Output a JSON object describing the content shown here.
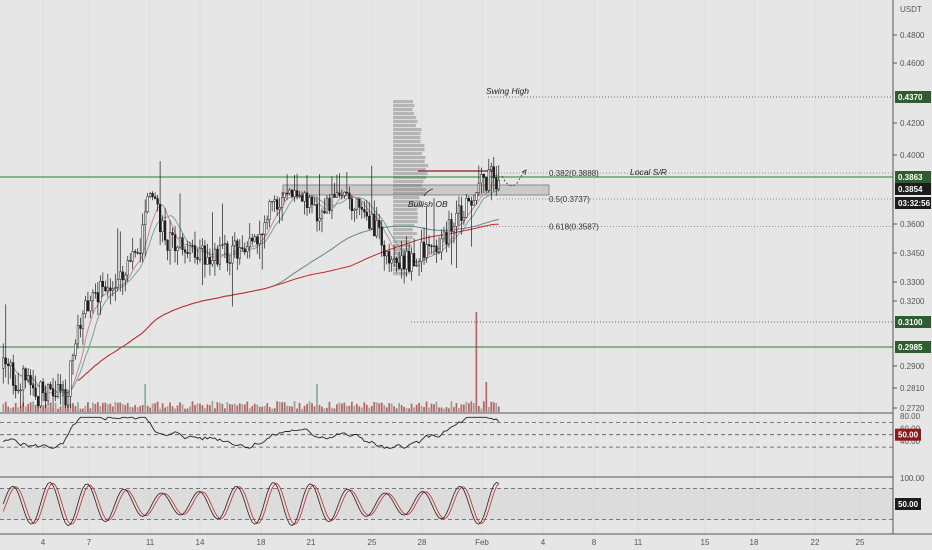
{
  "chart_data": {
    "type": "candlestick",
    "currency_label": "USDT",
    "price_axis_ticks": [
      "0.4800",
      "0.4600",
      "0.4200",
      "0.4000",
      "0.3600",
      "0.3450",
      "0.3300",
      "0.3200",
      "0.2900",
      "0.2810",
      "0.2720"
    ],
    "price_badges": [
      {
        "text": "0.4370",
        "price": 0.437,
        "color": "#2e5e2e"
      },
      {
        "text": "0.3863",
        "price": 0.3863,
        "color": "#2e5e2e"
      },
      {
        "text": "0.3854",
        "price": 0.3854,
        "color": "#1c1c1c"
      },
      {
        "text": "03:32:56",
        "price": 0.379,
        "color": "#1c1c1c"
      },
      {
        "text": "0.3100",
        "price": 0.31,
        "color": "#2e5e2e"
      },
      {
        "text": "0.2985",
        "price": 0.2985,
        "color": "#2e5e2e"
      }
    ],
    "date_axis_ticks": [
      "4",
      "7",
      "11",
      "14",
      "18",
      "21",
      "25",
      "28",
      "Feb",
      "4",
      "8",
      "11",
      "15",
      "18",
      "22",
      "25"
    ],
    "levels": [
      {
        "price": 0.437,
        "style": "dotted",
        "label": "Swing High"
      },
      {
        "price": 0.3863,
        "style": "solid",
        "color": "#2e7d32",
        "label": "Local S/R"
      },
      {
        "price": 0.31,
        "style": "dotted",
        "label": ""
      },
      {
        "price": 0.2985,
        "style": "solid",
        "color": "#2e7d32",
        "label": ""
      }
    ],
    "fib_levels": [
      {
        "label": "0.382(0.3888)",
        "price": 0.3888
      },
      {
        "label": "0.5(0.3737)",
        "price": 0.3737
      },
      {
        "label": "0.618(0.3587)",
        "price": 0.3587
      }
    ],
    "order_block": {
      "label": "Bullish OB",
      "top": 0.384,
      "bottom": 0.379
    },
    "annotations": [
      "Swing High",
      "Local S/R",
      "Bullish OB"
    ],
    "rsi": {
      "ticks": [
        "80.00",
        "60.00",
        "40.00"
      ],
      "current": "50.00"
    },
    "stoch_rsi": {
      "ticks": [
        "100.00",
        "50.00"
      ],
      "current": "50.00"
    }
  },
  "colors": {
    "background": "#e6e6e6",
    "candle": "#1c1c1c",
    "level_green": "#2e7d32",
    "ma_red": "#c62828",
    "ma_teal": "#5f8a8b",
    "volume": "#b24444"
  }
}
